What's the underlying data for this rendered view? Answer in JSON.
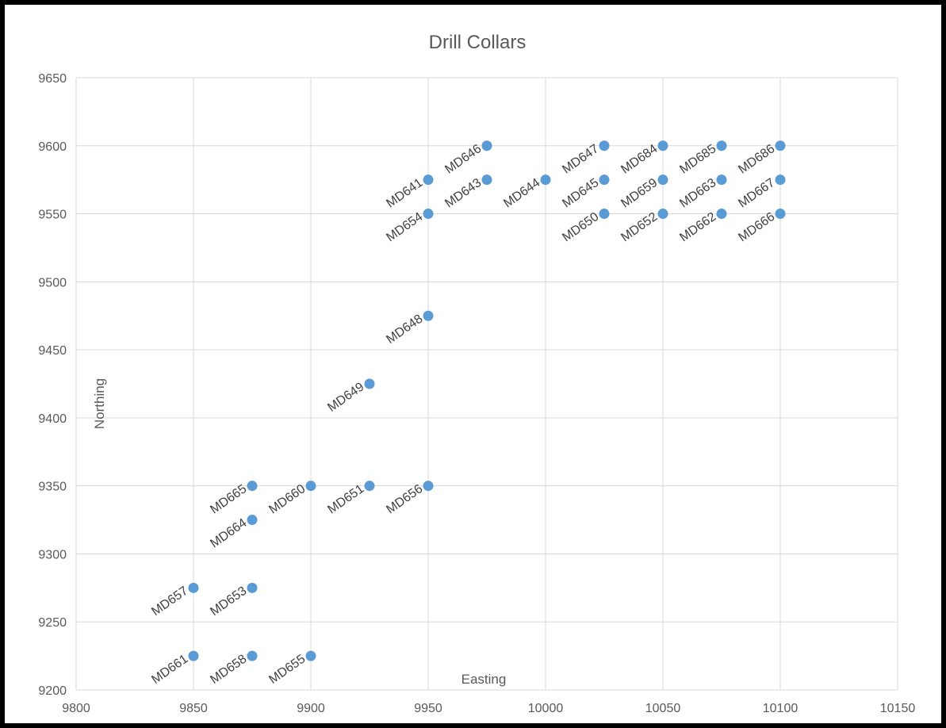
{
  "chart_data": {
    "type": "scatter",
    "title": "Drill Collars",
    "xlabel": "Easting",
    "ylabel": "Northing",
    "xlim": [
      9800,
      10150
    ],
    "ylim": [
      9200,
      9650
    ],
    "xticks": [
      9800,
      9850,
      9900,
      9950,
      10000,
      10050,
      10100,
      10150
    ],
    "yticks": [
      9200,
      9250,
      9300,
      9350,
      9400,
      9450,
      9500,
      9550,
      9600,
      9650
    ],
    "grid": true,
    "legend": "none",
    "marker_color": "#5B9BD5",
    "points": [
      {
        "label": "MD646",
        "x": 9975,
        "y": 9600
      },
      {
        "label": "MD647",
        "x": 10025,
        "y": 9600
      },
      {
        "label": "MD684",
        "x": 10050,
        "y": 9600
      },
      {
        "label": "MD685",
        "x": 10075,
        "y": 9600
      },
      {
        "label": "MD686",
        "x": 10100,
        "y": 9600
      },
      {
        "label": "MD641",
        "x": 9950,
        "y": 9575
      },
      {
        "label": "MD643",
        "x": 9975,
        "y": 9575
      },
      {
        "label": "MD644",
        "x": 10000,
        "y": 9575
      },
      {
        "label": "MD645",
        "x": 10025,
        "y": 9575
      },
      {
        "label": "MD659",
        "x": 10050,
        "y": 9575
      },
      {
        "label": "MD663",
        "x": 10075,
        "y": 9575
      },
      {
        "label": "MD667",
        "x": 10100,
        "y": 9575
      },
      {
        "label": "MD654",
        "x": 9950,
        "y": 9550
      },
      {
        "label": "MD650",
        "x": 10025,
        "y": 9550
      },
      {
        "label": "MD652",
        "x": 10050,
        "y": 9550
      },
      {
        "label": "MD662",
        "x": 10075,
        "y": 9550
      },
      {
        "label": "MD666",
        "x": 10100,
        "y": 9550
      },
      {
        "label": "MD648",
        "x": 9950,
        "y": 9475
      },
      {
        "label": "MD649",
        "x": 9925,
        "y": 9425
      },
      {
        "label": "MD665",
        "x": 9875,
        "y": 9350
      },
      {
        "label": "MD660",
        "x": 9900,
        "y": 9350
      },
      {
        "label": "MD651",
        "x": 9925,
        "y": 9350
      },
      {
        "label": "MD656",
        "x": 9950,
        "y": 9350
      },
      {
        "label": "MD664",
        "x": 9875,
        "y": 9325
      },
      {
        "label": "MD657",
        "x": 9850,
        "y": 9275
      },
      {
        "label": "MD653",
        "x": 9875,
        "y": 9275
      },
      {
        "label": "MD661",
        "x": 9850,
        "y": 9225
      },
      {
        "label": "MD658",
        "x": 9875,
        "y": 9225
      },
      {
        "label": "MD655",
        "x": 9900,
        "y": 9225
      }
    ]
  }
}
